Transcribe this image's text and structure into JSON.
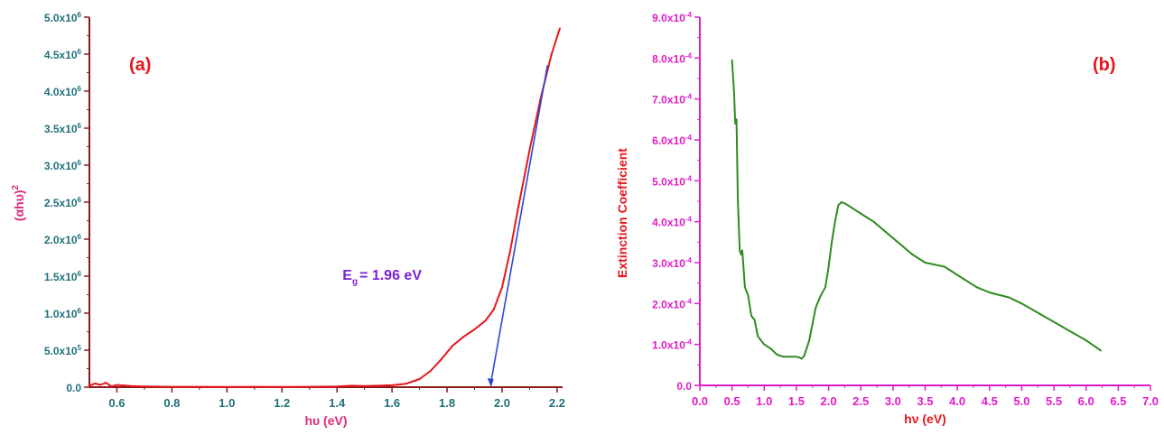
{
  "chart_data": [
    {
      "type": "line",
      "panel_label": "(a)",
      "xlabel": "hυ (eV)",
      "ylabel_base": "(αhυ)",
      "ylabel_sup": "2",
      "xlim": [
        0.5,
        2.22
      ],
      "ylim": [
        0,
        5000000
      ],
      "x_ticks": [
        0.6,
        0.8,
        1.0,
        1.2,
        1.4,
        1.6,
        1.8,
        2.0,
        2.2
      ],
      "x_tick_labels": [
        "0.6",
        "0.8",
        "1.0",
        "1.2",
        "1.4",
        "1.6",
        "1.8",
        "2.0",
        "2.2"
      ],
      "y_ticks": [
        0,
        500000,
        1000000,
        1500000,
        2000000,
        2500000,
        3000000,
        3500000,
        4000000,
        4500000,
        5000000
      ],
      "y_tick_labels": [
        {
          "base": "0.0",
          "exp": ""
        },
        {
          "base": "5.0x10",
          "exp": "5"
        },
        {
          "base": "1.0x10",
          "exp": "6"
        },
        {
          "base": "1.5x10",
          "exp": "6"
        },
        {
          "base": "2.0x10",
          "exp": "6"
        },
        {
          "base": "2.5x10",
          "exp": "6"
        },
        {
          "base": "3.0x10",
          "exp": "6"
        },
        {
          "base": "3.5x10",
          "exp": "6"
        },
        {
          "base": "4.0x10",
          "exp": "6"
        },
        {
          "base": "4.5x10",
          "exp": "6"
        },
        {
          "base": "5.0x10",
          "exp": "6"
        }
      ],
      "annotation": {
        "E": "E",
        "sub": "g",
        "rest": "= 1.96 eV",
        "x": 1.42,
        "y": 1450000
      },
      "series": [
        {
          "color": "#e8141c",
          "x": [
            0.5,
            0.52,
            0.54,
            0.56,
            0.58,
            0.6,
            0.65,
            0.7,
            0.8,
            0.9,
            1.0,
            1.1,
            1.2,
            1.3,
            1.4,
            1.45,
            1.5,
            1.55,
            1.6,
            1.65,
            1.7,
            1.74,
            1.78,
            1.82,
            1.86,
            1.9,
            1.94,
            1.97,
            2.0,
            2.03,
            2.06,
            2.1,
            2.14,
            2.18,
            2.21
          ],
          "y": [
            20000,
            50000,
            30000,
            60000,
            10000,
            30000,
            15000,
            10000,
            5000,
            5000,
            3000,
            5000,
            3000,
            5000,
            8000,
            20000,
            15000,
            20000,
            25000,
            45000,
            110000,
            220000,
            380000,
            560000,
            680000,
            780000,
            900000,
            1050000,
            1350000,
            1850000,
            2450000,
            3200000,
            3900000,
            4500000,
            4850000
          ]
        }
      ],
      "fit_line": {
        "color": "#2f45d8",
        "x": [
          1.96,
          2.165
        ],
        "y": [
          0,
          4350000
        ]
      }
    },
    {
      "type": "line",
      "panel_label": "(b)",
      "xlabel": "hν (eV)",
      "ylabel": "Extinction Coefficient",
      "xlim": [
        0,
        7.0
      ],
      "ylim": [
        0,
        0.0009
      ],
      "x_ticks": [
        0.0,
        0.5,
        1.0,
        1.5,
        2.0,
        2.5,
        3.0,
        3.5,
        4.0,
        4.5,
        5.0,
        5.5,
        6.0,
        6.5,
        7.0
      ],
      "x_tick_labels": [
        "0.0",
        "0.5",
        "1.0",
        "1.5",
        "2.0",
        "2.5",
        "3.0",
        "3.5",
        "4.0",
        "4.5",
        "5.0",
        "5.5",
        "6.0",
        "6.5",
        "7.0"
      ],
      "y_ticks": [
        0,
        0.0001,
        0.0002,
        0.0003,
        0.0004,
        0.0005,
        0.0006,
        0.0007,
        0.0008,
        0.0009
      ],
      "y_tick_labels": [
        {
          "base": "0.0",
          "exp": ""
        },
        {
          "base": "1.0x10",
          "exp": "-4"
        },
        {
          "base": "2.0x10",
          "exp": "-4"
        },
        {
          "base": "3.0x10",
          "exp": "-4"
        },
        {
          "base": "4.0x10",
          "exp": "-4"
        },
        {
          "base": "5.0x10",
          "exp": "-4"
        },
        {
          "base": "6.0x10",
          "exp": "-4"
        },
        {
          "base": "7.0x10",
          "exp": "-4"
        },
        {
          "base": "8.0x10",
          "exp": "-4"
        },
        {
          "base": "9.0x10",
          "exp": "-4"
        }
      ],
      "series": [
        {
          "color": "#2e8b1e",
          "x": [
            0.5,
            0.53,
            0.55,
            0.57,
            0.59,
            0.62,
            0.64,
            0.66,
            0.7,
            0.75,
            0.8,
            0.85,
            0.9,
            1.0,
            1.1,
            1.2,
            1.3,
            1.4,
            1.5,
            1.55,
            1.58,
            1.62,
            1.7,
            1.8,
            1.88,
            1.95,
            2.0,
            2.05,
            2.1,
            2.15,
            2.2,
            2.25,
            2.3,
            2.5,
            2.7,
            3.0,
            3.3,
            3.5,
            3.8,
            4.0,
            4.3,
            4.5,
            4.8,
            5.0,
            5.5,
            6.0,
            6.23
          ],
          "y": [
            0.000795,
            0.00072,
            0.00064,
            0.00065,
            0.00045,
            0.00033,
            0.00032,
            0.00033,
            0.00024,
            0.00022,
            0.00017,
            0.00016,
            0.00012,
            0.0001,
            9e-05,
            7.5e-05,
            7e-05,
            7e-05,
            7e-05,
            6.8e-05,
            6.5e-05,
            7.2e-05,
            0.00011,
            0.00019,
            0.00022,
            0.00024,
            0.00029,
            0.00035,
            0.0004,
            0.00044,
            0.000448,
            0.000445,
            0.00044,
            0.00042,
            0.0004,
            0.00036,
            0.00032,
            0.0003,
            0.00029,
            0.00027,
            0.00024,
            0.000227,
            0.000215,
            0.0002,
            0.000155,
            0.00011,
            8.5e-05
          ]
        }
      ]
    }
  ]
}
